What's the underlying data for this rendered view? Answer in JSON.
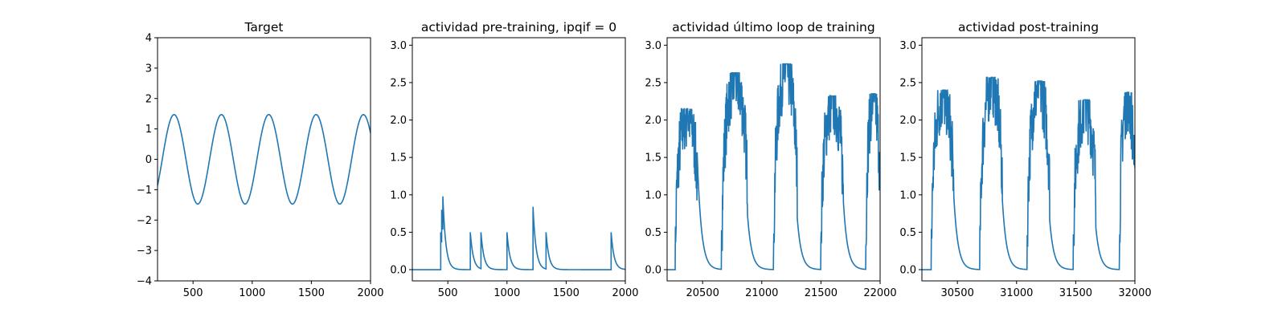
{
  "chart_data": [
    {
      "type": "line",
      "title": "Target",
      "xlabel": "",
      "ylabel": "",
      "xlim": [
        200,
        2000
      ],
      "ylim": [
        -4,
        4
      ],
      "xticks": [
        500,
        1000,
        1500,
        2000
      ],
      "yticks": [
        -4,
        -3,
        -2,
        -1,
        0,
        1,
        2,
        3,
        4
      ],
      "grid": false,
      "color": "#1f77b4",
      "signal": {
        "kind": "sine",
        "amplitude": 1.47,
        "period": 400,
        "first_peak_x": 340
      },
      "series": [
        {
          "x": [
            200,
            240,
            290,
            340,
            390,
            440,
            490,
            540,
            590,
            640,
            690,
            740,
            790,
            840,
            890,
            940,
            990,
            1040,
            1090,
            1140,
            1190,
            1240,
            1290,
            1340,
            1390,
            1440,
            1490,
            1540,
            1590,
            1640,
            1690,
            1740,
            1790,
            1840,
            1890,
            1940,
            1990,
            2000
          ],
          "y": [
            -0.92,
            0.0,
            1.04,
            1.47,
            1.04,
            0.0,
            -1.04,
            -1.47,
            -1.04,
            0.0,
            1.04,
            1.47,
            1.04,
            0.0,
            -1.04,
            -1.47,
            -1.04,
            0.0,
            1.04,
            1.47,
            1.04,
            0.0,
            -1.04,
            -1.47,
            -1.04,
            0.0,
            1.04,
            1.47,
            1.04,
            0.0,
            -1.04,
            -1.47,
            -1.04,
            0.0,
            1.04,
            1.47,
            1.04,
            0.95
          ]
        }
      ]
    },
    {
      "type": "line",
      "title": "actividad pre-training, ipqif = 0",
      "xlabel": "",
      "ylabel": "",
      "xlim": [
        200,
        2000
      ],
      "ylim": [
        -0.15,
        3.1
      ],
      "xticks": [
        500,
        1000,
        1500,
        2000
      ],
      "yticks": [
        0.0,
        0.5,
        1.0,
        1.5,
        2.0,
        2.5,
        3.0
      ],
      "ytick_labels": [
        "0.0",
        "0.5",
        "1.0",
        "1.5",
        "2.0",
        "2.5",
        "3.0"
      ],
      "grid": false,
      "color": "#1f77b4",
      "spikes": [
        {
          "x": 440,
          "y": 0.5
        },
        {
          "x": 448,
          "y": 0.8
        },
        {
          "x": 458,
          "y": 0.98
        },
        {
          "x": 690,
          "y": 0.5
        },
        {
          "x": 780,
          "y": 0.5
        },
        {
          "x": 1000,
          "y": 0.5
        },
        {
          "x": 1220,
          "y": 0.84
        },
        {
          "x": 1330,
          "y": 0.5
        },
        {
          "x": 1880,
          "y": 0.5
        }
      ],
      "decay_constant": 25
    },
    {
      "type": "line",
      "title": "actividad último loop de training",
      "xlabel": "",
      "ylabel": "",
      "xlim": [
        20200,
        22000
      ],
      "ylim": [
        -0.15,
        3.1
      ],
      "xticks": [
        20500,
        21000,
        21500,
        22000
      ],
      "yticks": [
        0.0,
        0.5,
        1.0,
        1.5,
        2.0,
        2.5,
        3.0
      ],
      "ytick_labels": [
        "0.0",
        "0.5",
        "1.0",
        "1.5",
        "2.0",
        "2.5",
        "3.0"
      ],
      "grid": false,
      "color": "#1f77b4",
      "bursts": [
        {
          "start": 20270,
          "end": 20460,
          "peak": 2.15
        },
        {
          "start": 20660,
          "end": 20880,
          "peak": 2.63
        },
        {
          "start": 21100,
          "end": 21300,
          "peak": 2.75
        },
        {
          "start": 21500,
          "end": 21690,
          "peak": 2.32
        },
        {
          "start": 21880,
          "end": 22000,
          "peak": 2.35
        }
      ],
      "decay_constant": 35
    },
    {
      "type": "line",
      "title": "actividad post-training",
      "xlabel": "",
      "ylabel": "",
      "xlim": [
        30200,
        32000
      ],
      "ylim": [
        -0.15,
        3.1
      ],
      "xticks": [
        30500,
        31000,
        31500,
        32000
      ],
      "yticks": [
        0.0,
        0.5,
        1.0,
        1.5,
        2.0,
        2.5,
        3.0
      ],
      "ytick_labels": [
        "0.0",
        "0.5",
        "1.0",
        "1.5",
        "2.0",
        "2.5",
        "3.0"
      ],
      "grid": false,
      "color": "#1f77b4",
      "bursts": [
        {
          "start": 30280,
          "end": 30470,
          "peak": 2.4
        },
        {
          "start": 30690,
          "end": 30880,
          "peak": 2.57
        },
        {
          "start": 31090,
          "end": 31280,
          "peak": 2.52
        },
        {
          "start": 31480,
          "end": 31670,
          "peak": 2.27
        },
        {
          "start": 31870,
          "end": 32000,
          "peak": 2.37
        }
      ],
      "decay_constant": 35
    }
  ]
}
